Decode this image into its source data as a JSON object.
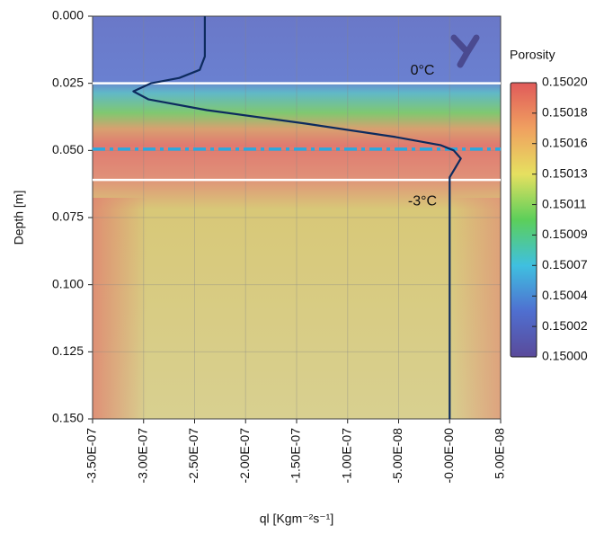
{
  "chart_data": {
    "type": "line",
    "x_label": "ql [Kgm⁻²s⁻¹]",
    "y_label": "Depth [m]",
    "x": [
      -2.4e-07,
      -2.4e-07,
      -2.45e-07,
      -2.65e-07,
      -2.93e-07,
      -3.1e-07,
      -2.95e-07,
      -2.38e-07,
      -1.41e-07,
      -5.3e-08,
      -9e-09,
      4e-09,
      1.1e-08,
      0.0,
      0.0
    ],
    "values": [
      0.0,
      0.015,
      0.02,
      0.023,
      0.025,
      0.028,
      0.031,
      0.035,
      0.04,
      0.045,
      0.048,
      0.05,
      0.053,
      0.06,
      0.15
    ],
    "color": "#0d2b5e",
    "xlim": [
      -3.5e-07,
      5e-08
    ],
    "xticks": [
      {
        "value": -3.5e-07,
        "label": "-3.50E-07"
      },
      {
        "value": -3e-07,
        "label": "-3.00E-07"
      },
      {
        "value": -2.5e-07,
        "label": "-2.50E-07"
      },
      {
        "value": -2e-07,
        "label": "-2.00E-07"
      },
      {
        "value": -1.5e-07,
        "label": "-1.50E-07"
      },
      {
        "value": -1e-07,
        "label": "-1.00E-07"
      },
      {
        "value": -5e-08,
        "label": "-5.00E-08"
      },
      {
        "value": 0,
        "label": "-0.00E-00"
      },
      {
        "value": 5e-08,
        "label": "5.00E-08"
      }
    ],
    "ylim": [
      0.0,
      0.15
    ],
    "y_inverted": true,
    "yticks": [
      {
        "value": 0,
        "label": "0.000"
      },
      {
        "value": 0.025,
        "label": "0.025"
      },
      {
        "value": 0.05,
        "label": "0.050"
      },
      {
        "value": 0.075,
        "label": "0.075"
      },
      {
        "value": 0.1,
        "label": "0.100"
      },
      {
        "value": 0.125,
        "label": "0.125"
      },
      {
        "value": 0.15,
        "label": "0.150"
      }
    ],
    "grid": true,
    "isotherms": [
      {
        "depth": 0.025,
        "label": "0°C"
      },
      {
        "depth": 0.061,
        "label": "-3°C"
      }
    ],
    "front_depth": 0.0495,
    "colorbar": {
      "title": "Porosity",
      "lim": [
        0.15,
        0.1502
      ],
      "colors": [
        "#5a4a9a",
        "#4f6fd0",
        "#3fc0e0",
        "#5ccf5a",
        "#e6e060",
        "#f0a060",
        "#e05a5a"
      ],
      "ticks": [
        {
          "value": 0.15,
          "label": "0.15000"
        },
        {
          "value": 0.1500222,
          "label": "0.15002"
        },
        {
          "value": 0.1500444,
          "label": "0.15004"
        },
        {
          "value": 0.1500667,
          "label": "0.15007"
        },
        {
          "value": 0.1500889,
          "label": "0.15009"
        },
        {
          "value": 0.1501111,
          "label": "0.15011"
        },
        {
          "value": 0.1501333,
          "label": "0.15013"
        },
        {
          "value": 0.1501556,
          "label": "0.15016"
        },
        {
          "value": 0.1501778,
          "label": "0.15018"
        },
        {
          "value": 0.1502,
          "label": "0.15020"
        }
      ]
    }
  }
}
